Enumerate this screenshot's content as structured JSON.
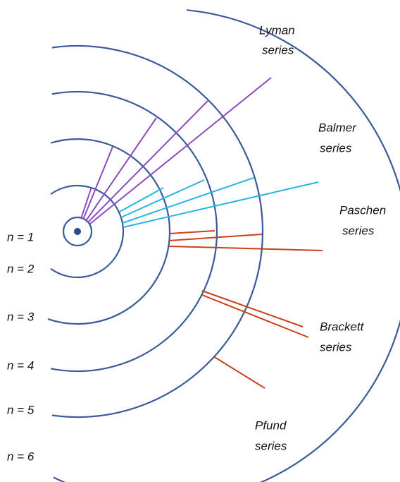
{
  "levels": [
    "n = 1",
    "n = 2",
    "n = 3",
    "n = 4",
    "n = 5",
    "n = 6"
  ],
  "series": [
    {
      "name": "Lyman",
      "word": "series"
    },
    {
      "name": "Balmer",
      "word": "series"
    },
    {
      "name": "Paschen",
      "word": "series"
    },
    {
      "name": "Brackett",
      "word": "series"
    },
    {
      "name": "Pfund",
      "word": "series"
    }
  ]
}
